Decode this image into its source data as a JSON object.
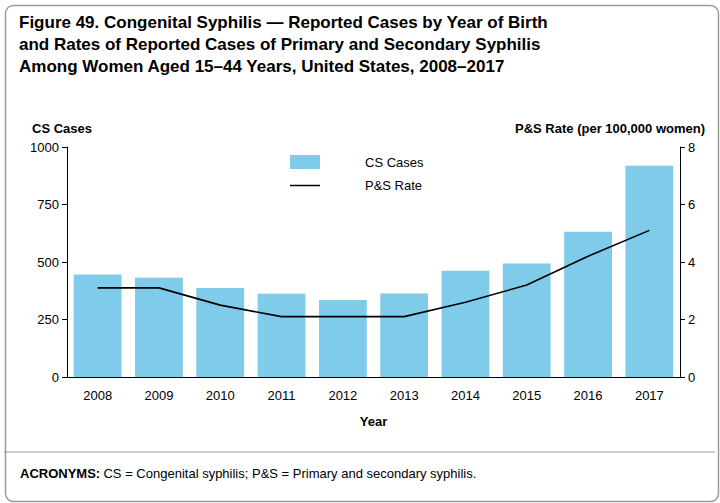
{
  "chart_data": {
    "type": "bar",
    "title": "Figure 49. Congenital Syphilis — Reported Cases by Year of Birth\nand Rates of Reported Cases of Primary and Secondary Syphilis\nAmong Women Aged 15–44 Years, United States, 2008–2017",
    "x_label": "Year",
    "y_label": "CS Cases",
    "y2_label": "P&S Rate (per 100,000 women)",
    "footnote": {
      "label": "ACRONYMS:",
      "text": "CS = Congenital syphilis; P&S = Primary and secondary syphilis."
    },
    "categories": [
      "2008",
      "2009",
      "2010",
      "2011",
      "2012",
      "2013",
      "2014",
      "2015",
      "2016",
      "2017"
    ],
    "series": [
      {
        "name": "CS Cases",
        "type": "bar",
        "color": "#7fcbea",
        "values": [
          446,
          431,
          387,
          362,
          335,
          363,
          462,
          493,
          631,
          918
        ]
      },
      {
        "name": "P&S Rate",
        "type": "line",
        "axis": "y2",
        "color": "#000000",
        "line_style": "solid",
        "values": [
          3.1,
          3.1,
          2.5,
          2.1,
          2.1,
          2.1,
          2.6,
          3.2,
          4.2,
          5.1
        ]
      }
    ],
    "ylim": [
      0,
      1000
    ],
    "yticks": [
      0,
      250,
      500,
      750,
      1000
    ],
    "y2lim": [
      0,
      8
    ],
    "y2ticks": [
      0,
      2,
      4,
      6,
      8
    ],
    "grid": false,
    "legend": "top"
  }
}
